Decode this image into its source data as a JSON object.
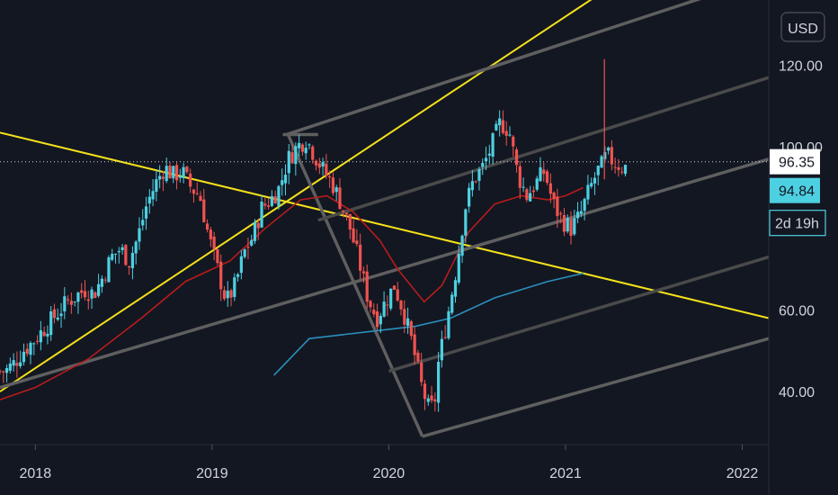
{
  "currency_button": "USD",
  "chart_data": {
    "type": "candlestick",
    "symbol_currency": "USD",
    "x_axis": {
      "ticks": [
        "2018",
        "2019",
        "2020",
        "2021",
        "2022"
      ],
      "range": [
        2017.8,
        2022.15
      ]
    },
    "y_axis": {
      "ticks": [
        "120.00",
        "100.00",
        "60.00",
        "40.00"
      ],
      "range": [
        27,
        136
      ]
    },
    "price_tags": [
      {
        "label": "96.35",
        "value": 96.35,
        "color": "#ffffff",
        "text_color": "#131722"
      },
      {
        "label": "94.84",
        "value": 94.84,
        "color": "#4dd0e1",
        "text_color": "#131722"
      }
    ],
    "countdown_label": "2d 19h",
    "current_price_line": 96.35,
    "moving_averages": [
      {
        "name": "MA-50",
        "color": "#b71c1c",
        "points": [
          [
            2017.8,
            38
          ],
          [
            2018.0,
            41
          ],
          [
            2018.3,
            48
          ],
          [
            2018.6,
            58
          ],
          [
            2018.85,
            67
          ],
          [
            2019.1,
            72
          ],
          [
            2019.3,
            80
          ],
          [
            2019.5,
            87
          ],
          [
            2019.65,
            88
          ],
          [
            2019.8,
            84
          ],
          [
            2019.95,
            77
          ],
          [
            2020.05,
            70
          ],
          [
            2020.2,
            62
          ],
          [
            2020.3,
            66
          ],
          [
            2020.45,
            79
          ],
          [
            2020.6,
            86
          ],
          [
            2020.75,
            88
          ],
          [
            2020.9,
            87
          ],
          [
            2021.0,
            88
          ],
          [
            2021.1,
            90
          ]
        ]
      },
      {
        "name": "MA-200",
        "color": "#2a8fbd",
        "points": [
          [
            2019.35,
            44
          ],
          [
            2019.55,
            53
          ],
          [
            2019.75,
            54
          ],
          [
            2019.95,
            55
          ],
          [
            2020.15,
            56
          ],
          [
            2020.35,
            58
          ],
          [
            2020.6,
            63
          ],
          [
            2020.9,
            67
          ],
          [
            2021.1,
            69
          ]
        ]
      }
    ],
    "trendlines": [
      {
        "color": "#f5e11a",
        "from": [
          2017.8,
          103.5
        ],
        "to": [
          2022.15,
          58
        ]
      },
      {
        "color": "#f5e11a",
        "from": [
          2017.8,
          40
        ],
        "to": [
          2021.35,
          142
        ]
      },
      {
        "color": "#5f5f5f",
        "from": [
          2019.4,
          103
        ],
        "to": [
          2019.6,
          103
        ]
      },
      {
        "color": "#5f5f5f",
        "from": [
          2019.43,
          103
        ],
        "to": [
          2020.19,
          29
        ]
      },
      {
        "color": "#5f5f5f",
        "from": [
          2020.19,
          29
        ],
        "to": [
          2022.15,
          53
        ]
      },
      {
        "color": "#5f5f5f",
        "from": [
          2019.42,
          103
        ],
        "to": [
          2022.02,
          140
        ]
      },
      {
        "color": "#5f5f5f",
        "from": [
          2017.8,
          41
        ],
        "to": [
          2022.15,
          97
        ]
      },
      {
        "color": "#4a4a4a",
        "from": [
          2019.6,
          82
        ],
        "to": [
          2022.15,
          117
        ]
      },
      {
        "color": "#4a4a4a",
        "from": [
          2020.0,
          45
        ],
        "to": [
          2022.15,
          73
        ]
      }
    ],
    "price_path": [
      [
        2017.8,
        45
      ],
      [
        2017.85,
        45
      ],
      [
        2017.9,
        47
      ],
      [
        2017.95,
        50
      ],
      [
        2018.0,
        52
      ],
      [
        2018.1,
        57
      ],
      [
        2018.2,
        62
      ],
      [
        2018.3,
        65
      ],
      [
        2018.35,
        64
      ],
      [
        2018.4,
        68
      ],
      [
        2018.45,
        73
      ],
      [
        2018.5,
        75
      ],
      [
        2018.55,
        72
      ],
      [
        2018.6,
        78
      ],
      [
        2018.65,
        86
      ],
      [
        2018.7,
        91
      ],
      [
        2018.75,
        95
      ],
      [
        2018.8,
        93
      ],
      [
        2018.85,
        94
      ],
      [
        2018.9,
        90
      ],
      [
        2018.95,
        88
      ],
      [
        2019.0,
        78
      ],
      [
        2019.05,
        70
      ],
      [
        2019.1,
        62
      ],
      [
        2019.15,
        66
      ],
      [
        2019.2,
        74
      ],
      [
        2019.25,
        78
      ],
      [
        2019.3,
        85
      ],
      [
        2019.35,
        87
      ],
      [
        2019.4,
        90
      ],
      [
        2019.45,
        97
      ],
      [
        2019.5,
        100
      ],
      [
        2019.55,
        102
      ],
      [
        2019.6,
        98
      ],
      [
        2019.65,
        94
      ],
      [
        2019.7,
        91
      ],
      [
        2019.75,
        86
      ],
      [
        2019.8,
        80
      ],
      [
        2019.85,
        72
      ],
      [
        2019.9,
        63
      ],
      [
        2019.95,
        58
      ],
      [
        2020.0,
        62
      ],
      [
        2020.05,
        66
      ],
      [
        2020.1,
        60
      ],
      [
        2020.15,
        52
      ],
      [
        2020.2,
        42
      ],
      [
        2020.25,
        35
      ],
      [
        2020.28,
        38
      ],
      [
        2020.3,
        47
      ],
      [
        2020.35,
        58
      ],
      [
        2020.4,
        70
      ],
      [
        2020.45,
        85
      ],
      [
        2020.5,
        92
      ],
      [
        2020.55,
        95
      ],
      [
        2020.6,
        100
      ],
      [
        2020.65,
        106
      ],
      [
        2020.7,
        104
      ],
      [
        2020.75,
        93
      ],
      [
        2020.8,
        88
      ],
      [
        2020.85,
        91
      ],
      [
        2020.9,
        94
      ],
      [
        2020.95,
        86
      ],
      [
        2021.0,
        82
      ],
      [
        2021.05,
        80
      ],
      [
        2021.1,
        83
      ],
      [
        2021.15,
        89
      ],
      [
        2021.2,
        94
      ],
      [
        2021.22,
        95
      ],
      [
        2021.25,
        98
      ],
      [
        2021.3,
        96
      ],
      [
        2021.35,
        95
      ]
    ]
  }
}
